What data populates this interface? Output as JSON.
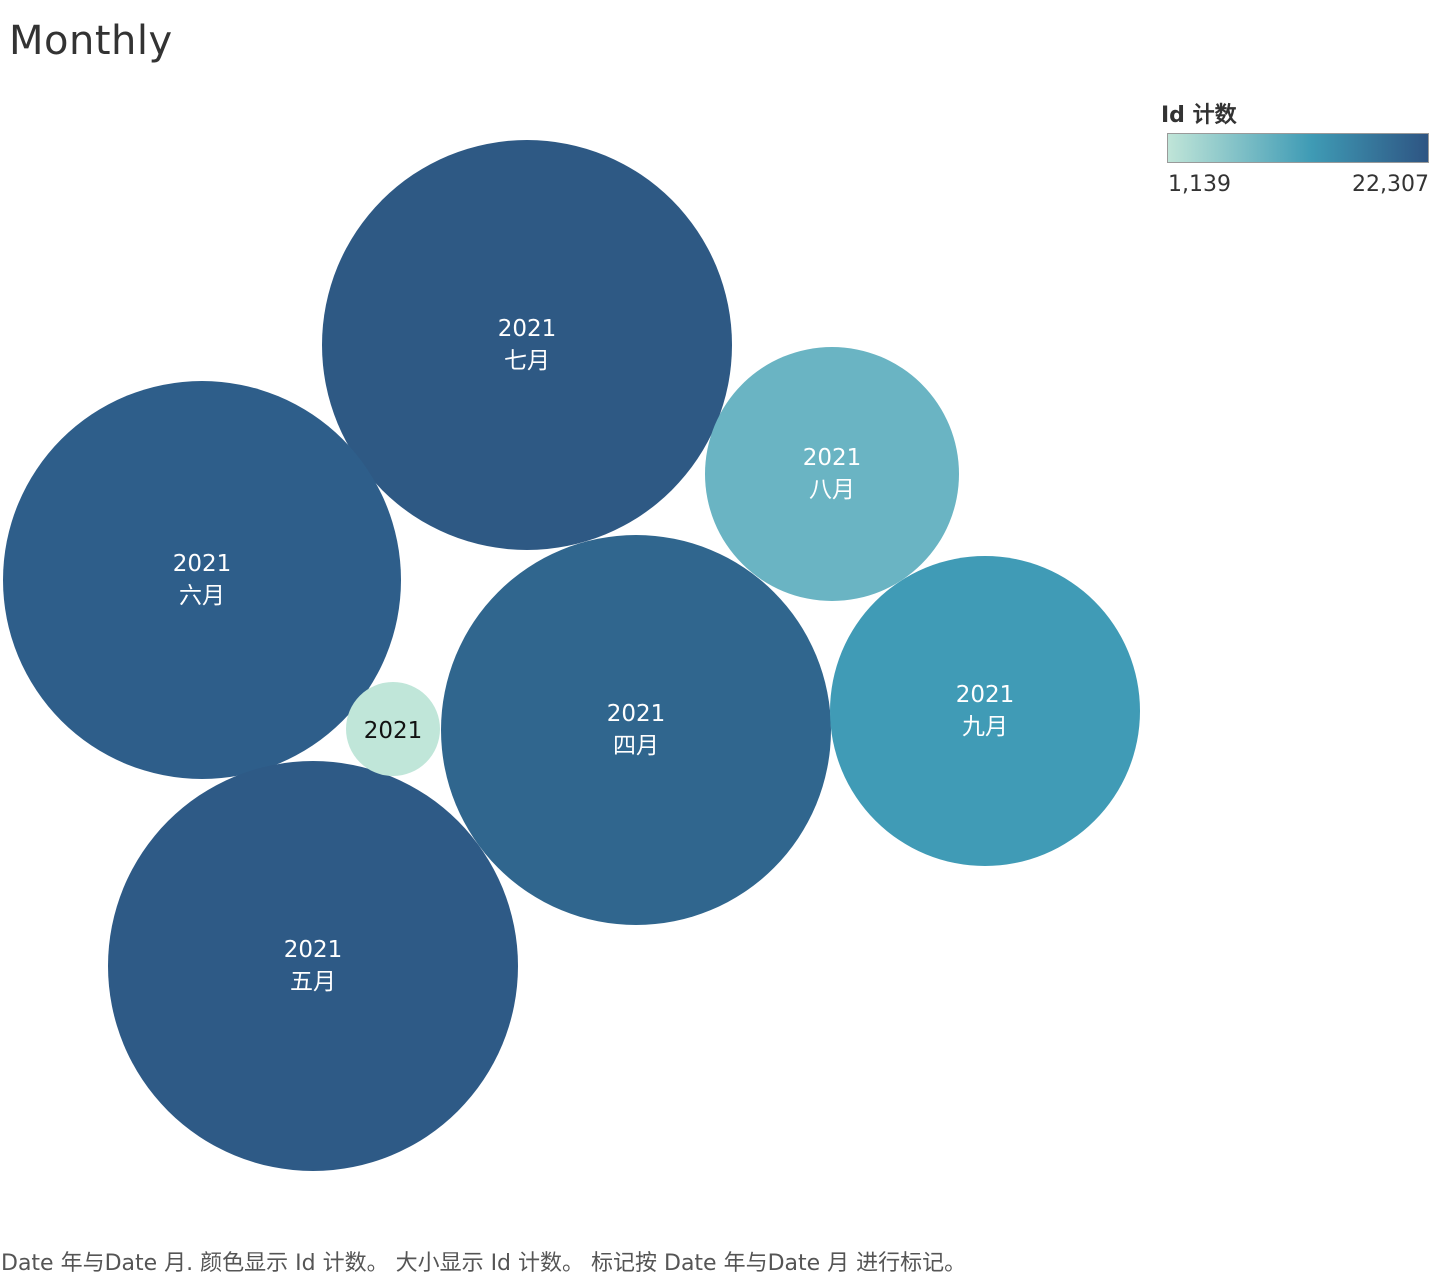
{
  "chart_data": {
    "type": "bubble",
    "title": "Monthly",
    "color_legend": {
      "title": "Id 计数",
      "min_label": "1,139",
      "max_label": "22,307",
      "min_value": 1139,
      "max_value": 22307,
      "color_low": "#c0e5d8",
      "color_mid": "#3f9bb5",
      "color_high": "#2e5583"
    },
    "bubbles": [
      {
        "year": "2021",
        "month": "七月",
        "value": 22307,
        "color": "#2e5984"
      },
      {
        "year": "2021",
        "month": "六月",
        "value": 21200,
        "color": "#2e5e8a"
      },
      {
        "year": "2021",
        "month": "五月",
        "value": 22000,
        "color": "#2e5a86"
      },
      {
        "year": "2021",
        "month": "四月",
        "value": 20500,
        "color": "#30668e"
      },
      {
        "year": "2021",
        "month": "九月",
        "value": 12800,
        "color": "#409bb6"
      },
      {
        "year": "2021",
        "month": "八月",
        "value": 8700,
        "color": "#6ab4c3"
      },
      {
        "year": "2021",
        "month": "",
        "value": 1139,
        "color": "#c0e6d9"
      }
    ],
    "caption": "Date 年与Date 月. 颜色显示 Id 计数。 大小显示 Id 计数。 标记按 Date 年与Date 月 进行标记。"
  }
}
